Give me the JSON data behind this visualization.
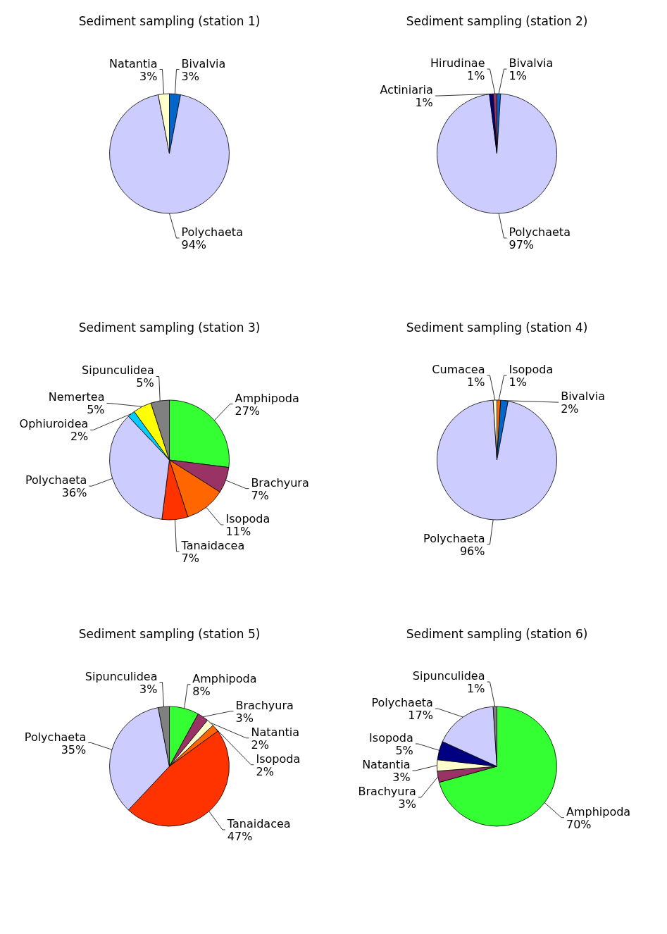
{
  "chart_data": [
    {
      "type": "pie",
      "title": "Sediment sampling (station 1)",
      "categories": [
        "Bivalvia",
        "Polychaeta",
        "Natantia"
      ],
      "values": [
        3,
        94,
        3
      ],
      "value_labels": [
        "3%",
        "94%",
        "3%"
      ],
      "colors": [
        "#0066cc",
        "#ccccff",
        "#ffffcc"
      ]
    },
    {
      "type": "pie",
      "title": "Sediment sampling (station 2)",
      "categories": [
        "Bivalvia",
        "Polychaeta",
        "Actiniaria",
        "Hirudinae"
      ],
      "values": [
        1,
        97,
        1,
        1
      ],
      "value_labels": [
        "1%",
        "97%",
        "1%",
        "1%"
      ],
      "colors": [
        "#0066cc",
        "#ccccff",
        "#000080",
        "#993366"
      ]
    },
    {
      "type": "pie",
      "title": "Sediment sampling (station 3)",
      "categories": [
        "Amphipoda",
        "Brachyura",
        "Isopoda",
        "Tanaidacea",
        "Polychaeta",
        "Ophiuroidea",
        "Nemertea",
        "Sipunculidea"
      ],
      "values": [
        27,
        7,
        11,
        7,
        36,
        2,
        5,
        5
      ],
      "value_labels": [
        "27%",
        "7%",
        "11%",
        "7%",
        "36%",
        "2%",
        "5%",
        "5%"
      ],
      "colors": [
        "#33ff33",
        "#993366",
        "#ff6600",
        "#ff3300",
        "#ccccff",
        "#00ccff",
        "#ffff00",
        "#808080"
      ]
    },
    {
      "type": "pie",
      "title": "Sediment sampling (station 4)",
      "categories": [
        "Isopoda",
        "Bivalvia",
        "Polychaeta",
        "Cumacea"
      ],
      "values": [
        1,
        2,
        96,
        1
      ],
      "value_labels": [
        "1%",
        "2%",
        "96%",
        "1%"
      ],
      "colors": [
        "#ff6600",
        "#0066cc",
        "#ccccff",
        "#ffffcc"
      ]
    },
    {
      "type": "pie",
      "title": "Sediment sampling (station 5)",
      "categories": [
        "Amphipoda",
        "Brachyura",
        "Natantia",
        "Isopoda",
        "Tanaidacea",
        "Polychaeta",
        "Sipunculidea"
      ],
      "values": [
        8,
        3,
        2,
        2,
        47,
        35,
        3
      ],
      "value_labels": [
        "8%",
        "3%",
        "2%",
        "2%",
        "47%",
        "35%",
        "3%"
      ],
      "colors": [
        "#33ff33",
        "#993366",
        "#ffffcc",
        "#ff6600",
        "#ff3300",
        "#ccccff",
        "#808080"
      ]
    },
    {
      "type": "pie",
      "title": "Sediment sampling (station 6)",
      "categories": [
        "Amphipoda",
        "Brachyura",
        "Natantia",
        "Isopoda",
        "Polychaeta",
        "Sipunculidea"
      ],
      "values": [
        70,
        3,
        3,
        5,
        17,
        1
      ],
      "value_labels": [
        "70%",
        "3%",
        "3%",
        "5%",
        "17%",
        "1%"
      ],
      "colors": [
        "#33ff33",
        "#993366",
        "#ffffcc",
        "#000080",
        "#ccccff",
        "#808080"
      ]
    }
  ]
}
